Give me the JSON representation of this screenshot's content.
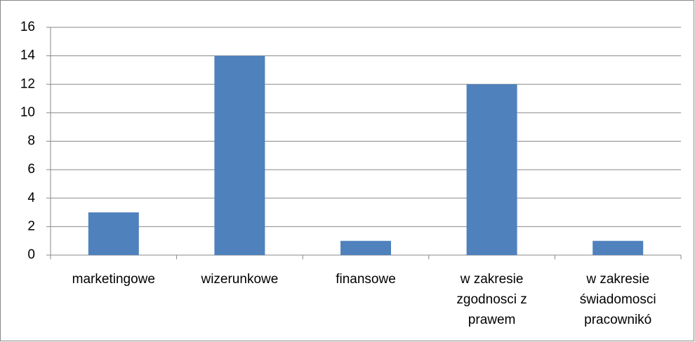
{
  "chart_data": {
    "type": "bar",
    "categories": [
      "marketingowe",
      "wizerunkowe",
      "finansowe",
      "w zakresie zgodnosci z prawem",
      "w zakresie świadomosci pracownikó"
    ],
    "values": [
      3,
      14,
      1,
      12,
      1
    ],
    "color": "#4f81bd",
    "ylim": [
      0,
      16
    ],
    "yticks": [
      0,
      2,
      4,
      6,
      8,
      10,
      12,
      14,
      16
    ],
    "grid": true
  }
}
